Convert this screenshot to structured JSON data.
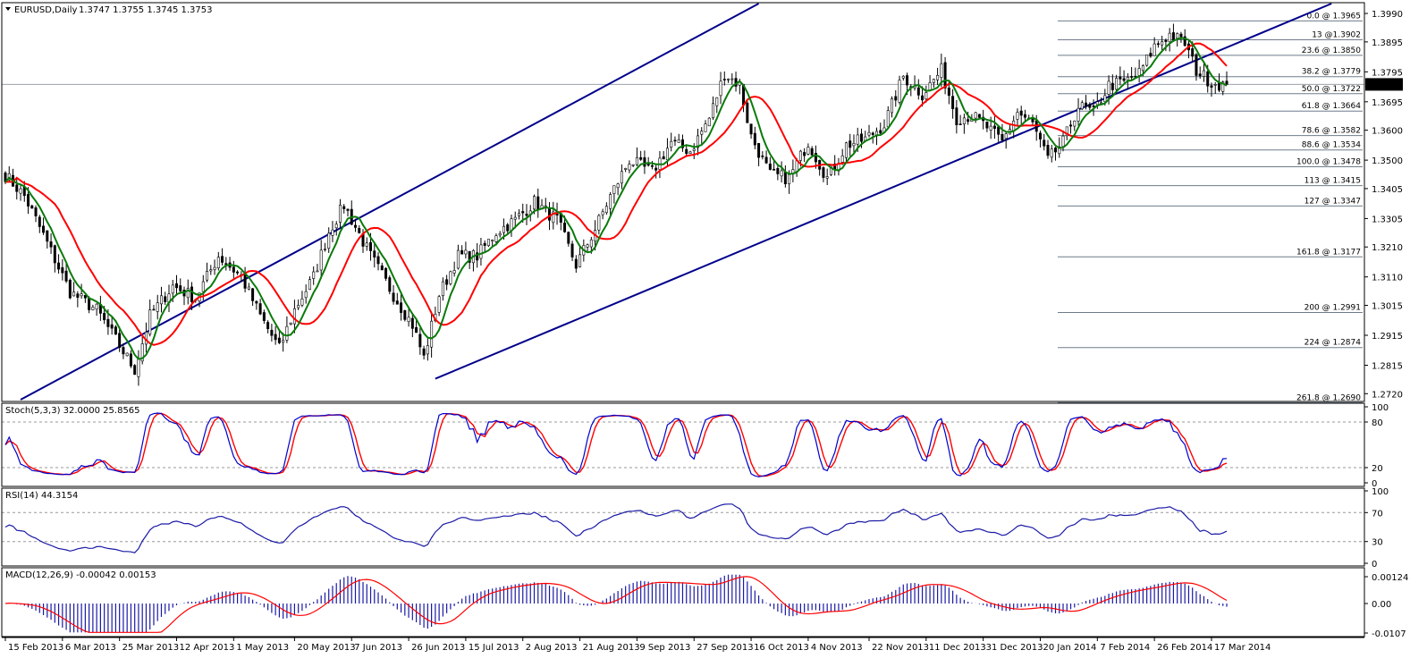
{
  "window": {
    "symbol_title": "EURUSD,Daily",
    "ohlc": "1.3747 1.3755 1.3745 1.3753",
    "current_price": "1.3753"
  },
  "chart_data": [
    {
      "type": "candlestick",
      "name": "EURUSD,Daily",
      "price_ticks": [
        "1.3990",
        "1.3895",
        "1.3795",
        "1.3695",
        "1.3600",
        "1.3500",
        "1.3405",
        "1.3305",
        "1.3210",
        "1.3110",
        "1.3015",
        "1.2915",
        "1.2815",
        "1.2720"
      ],
      "price_range": [
        1.27,
        1.402
      ],
      "date_ticks": [
        "15 Feb 2013",
        "6 Mar 2013",
        "25 Mar 2013",
        "12 Apr 2013",
        "1 May 2013",
        "20 May 2013",
        "7 Jun 2013",
        "26 Jun 2013",
        "15 Jul 2013",
        "2 Aug 2013",
        "21 Aug 2013",
        "9 Sep 2013",
        "27 Sep 2013",
        "16 Oct 2013",
        "4 Nov 2013",
        "22 Nov 2013",
        "11 Dec 2013",
        "31 Dec 2013",
        "20 Jan 2014",
        "7 Feb 2014",
        "26 Feb 2014",
        "17 Mar 2014"
      ],
      "fibonacci_levels": [
        {
          "label": "0.0 @ 1.3965",
          "price": 1.3965
        },
        {
          "label": "13 @1.3902",
          "price": 1.3902
        },
        {
          "label": "23.6 @ 1.3850",
          "price": 1.385
        },
        {
          "label": "38.2 @ 1.3779",
          "price": 1.3779
        },
        {
          "label": "50.0 @ 1.3722",
          "price": 1.3722
        },
        {
          "label": "61.8 @ 1.3664",
          "price": 1.3664
        },
        {
          "label": "78.6 @ 1.3582",
          "price": 1.3582
        },
        {
          "label": "88.6 @ 1.3534",
          "price": 1.3534
        },
        {
          "label": "100.0 @ 1.3478",
          "price": 1.3478
        },
        {
          "label": "113 @ 1.3415",
          "price": 1.3415
        },
        {
          "label": "127 @ 1.3347",
          "price": 1.3347
        },
        {
          "label": "161.8 @ 1.3177",
          "price": 1.3177
        },
        {
          "label": "200 @ 1.2991",
          "price": 1.2991
        },
        {
          "label": "224 @ 1.2874",
          "price": 1.2874
        },
        {
          "label": "261.8 @ 1.2690",
          "price": 1.269
        }
      ],
      "close_anchors": [
        [
          0,
          1.345
        ],
        [
          5,
          1.338
        ],
        [
          10,
          1.325
        ],
        [
          17,
          1.306
        ],
        [
          24,
          1.3
        ],
        [
          30,
          1.288
        ],
        [
          34,
          1.28
        ],
        [
          38,
          1.298
        ],
        [
          44,
          1.308
        ],
        [
          50,
          1.304
        ],
        [
          56,
          1.318
        ],
        [
          62,
          1.311
        ],
        [
          67,
          1.298
        ],
        [
          72,
          1.287
        ],
        [
          76,
          1.3
        ],
        [
          81,
          1.311
        ],
        [
          85,
          1.326
        ],
        [
          89,
          1.335
        ],
        [
          96,
          1.318
        ],
        [
          102,
          1.305
        ],
        [
          107,
          1.295
        ],
        [
          110,
          1.284
        ],
        [
          114,
          1.305
        ],
        [
          119,
          1.318
        ],
        [
          124,
          1.318
        ],
        [
          129,
          1.326
        ],
        [
          134,
          1.33
        ],
        [
          139,
          1.336
        ],
        [
          145,
          1.33
        ],
        [
          150,
          1.315
        ],
        [
          155,
          1.327
        ],
        [
          159,
          1.338
        ],
        [
          164,
          1.35
        ],
        [
          170,
          1.346
        ],
        [
          175,
          1.356
        ],
        [
          180,
          1.353
        ],
        [
          185,
          1.364
        ],
        [
          189,
          1.379
        ],
        [
          193,
          1.375
        ],
        [
          196,
          1.358
        ],
        [
          201,
          1.345
        ],
        [
          206,
          1.344
        ],
        [
          211,
          1.356
        ],
        [
          216,
          1.344
        ],
        [
          221,
          1.355
        ],
        [
          226,
          1.357
        ],
        [
          231,
          1.362
        ],
        [
          236,
          1.378
        ],
        [
          241,
          1.372
        ],
        [
          246,
          1.38
        ],
        [
          250,
          1.364
        ],
        [
          254,
          1.365
        ],
        [
          258,
          1.361
        ],
        [
          262,
          1.356
        ],
        [
          266,
          1.366
        ],
        [
          270,
          1.362
        ],
        [
          274,
          1.35
        ],
        [
          278,
          1.356
        ],
        [
          282,
          1.368
        ],
        [
          286,
          1.366
        ],
        [
          290,
          1.375
        ],
        [
          294,
          1.376
        ],
        [
          298,
          1.379
        ],
        [
          302,
          1.388
        ],
        [
          306,
          1.392
        ],
        [
          310,
          1.389
        ],
        [
          313,
          1.38
        ],
        [
          317,
          1.376
        ],
        [
          321,
          1.375
        ]
      ],
      "last_close": 1.3753
    },
    {
      "type": "line",
      "name": "Stoch(5,3,3) 32.0000 25.8565",
      "ticks": [
        "100",
        "80",
        "20",
        "0"
      ],
      "ylim": [
        0,
        100
      ],
      "last_values": [
        32.0,
        25.8565
      ]
    },
    {
      "type": "line",
      "name": "RSI(14) 44.3154",
      "ticks": [
        "100",
        "70",
        "30",
        "0"
      ],
      "ylim": [
        0,
        100
      ],
      "last_value": 44.3154
    },
    {
      "type": "bar",
      "name": "MACD(12,26,9) -0.00042 0.00153",
      "ticks": [
        "0.00124",
        "0.00",
        "-0.0107"
      ],
      "ylim": [
        -0.0107,
        0.00124
      ],
      "last_values": [
        -0.00042,
        0.00153
      ]
    }
  ],
  "colors": {
    "up_candle": "#ffffff",
    "down_candle": "#000000",
    "ma_fast": "#0a7a0a",
    "ma_slow": "#ff0000",
    "channel": "#00008b",
    "stoch_main": "#0000cc",
    "stoch_signal": "#ff0000",
    "rsi": "#1a1aa6",
    "macd_hist": "#1a1aa6",
    "macd_signal": "#ff0000",
    "fib": "#6e7b8b"
  }
}
